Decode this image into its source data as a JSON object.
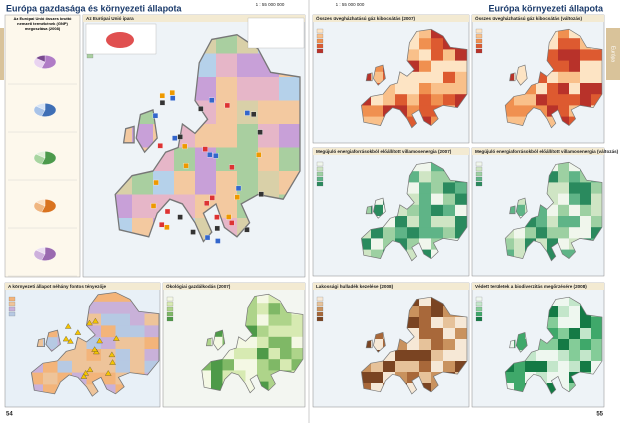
{
  "left_page": {
    "title": "Európa gazdasága és környezeti állapota",
    "scale": "1 : 55 000 000",
    "page_number": "54",
    "main_map": {
      "title": "Az Európai Unió ipara"
    },
    "gnp_box": {
      "title": "Az Európai Unió összes bruttó nemzeti termékének (GNP) megoszlása (2008)"
    },
    "environment_map": {
      "title": "A környezeti állapot néhány fontos tényezője"
    },
    "organic_map": {
      "title": "Ökológiai gazdálkodás (2007)"
    }
  },
  "right_page": {
    "title": "Európa környezeti állapota",
    "scale": "1 : 55 000 000",
    "page_number": "55",
    "side_tab": "Európa",
    "panels": [
      "Összes üvegházhatású gáz kibocsátás (2007)",
      "Összes üvegházhatású gáz kibocsátás (változás)",
      "Megújuló energiaforrásokból előállított villamosenergia (2007)",
      "Megújuló energiaforrásokból előállított villamosenergia (változás)",
      "Lakossági hulladék kezelése (2008)",
      "Védett területek a biodiverzitás megőrzésére (2008)"
    ]
  }
}
